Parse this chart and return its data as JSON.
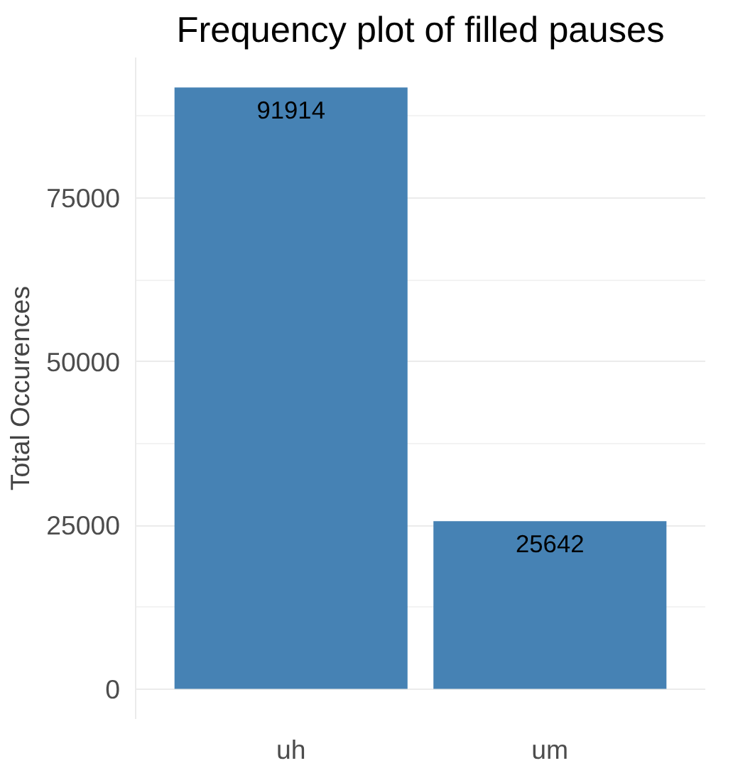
{
  "chart_data": {
    "type": "bar",
    "title": "Frequency plot of filled pauses",
    "ylabel": "Total Occurences",
    "categories": [
      "uh",
      "um"
    ],
    "ylim": [
      -4600,
      96500
    ],
    "values": [
      91914,
      25642
    ],
    "color": "#4682b4",
    "data_labels": true,
    "yticks": [
      0,
      {
        "value": 12500,
        "label": null
      },
      25000,
      {
        "value": 37500,
        "label": null
      },
      50000,
      {
        "value": 62500,
        "label": null
      },
      75000,
      {
        "value": 87500,
        "label": null
      }
    ],
    "grid": true
  }
}
